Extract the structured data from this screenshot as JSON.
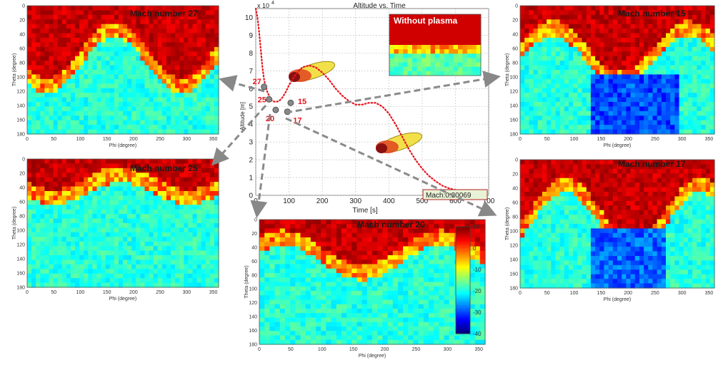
{
  "maps": [
    {
      "id": "m27",
      "title": "Mach number 27",
      "xlabel": "Phi (degree)",
      "ylabel": "Theta (degree)",
      "hot": 0.55
    },
    {
      "id": "m25",
      "title": "Mach number 25",
      "xlabel": "Phi (degree)",
      "ylabel": "Theta (degree)",
      "hot": 0.22
    },
    {
      "id": "m20",
      "title": "Mach number 20",
      "xlabel": "Phi (degree)",
      "ylabel": "Theta (degree)",
      "hot": 0.35
    },
    {
      "id": "m15",
      "title": "Mach number 15",
      "xlabel": "Phi (degree)",
      "ylabel": "Theta (degree)",
      "hot": 0.5
    },
    {
      "id": "m17",
      "title": "Mach number 17",
      "xlabel": "Phi (degree)",
      "ylabel": "Theta (degree)",
      "hot": 0.6
    }
  ],
  "map_axes": {
    "x_ticks": [
      "0",
      "50",
      "100",
      "150",
      "200",
      "250",
      "300",
      "350"
    ],
    "y_ticks": [
      "0",
      "20",
      "40",
      "60",
      "80",
      "100",
      "120",
      "140",
      "160",
      "180"
    ]
  },
  "colorbar": {
    "ticks": [
      "10",
      "0",
      "-10",
      "-20",
      "-30",
      "-40"
    ]
  },
  "inset": {
    "title": "Without plasma"
  },
  "chart_data": {
    "type": "line",
    "title": "Altitude vs. Time",
    "xlabel": "Time [s]",
    "ylabel": "Altitude [m]",
    "y_multiplier": "x 10",
    "y_exponent": "4",
    "xlim": [
      0,
      700
    ],
    "ylim": [
      0,
      10.5
    ],
    "grid": true,
    "x_ticks": [
      "0",
      "100",
      "200",
      "300",
      "400",
      "500",
      "600",
      "700"
    ],
    "y_ticks": [
      "0",
      "1",
      "2",
      "3",
      "4",
      "5",
      "6",
      "7",
      "8",
      "9",
      "10"
    ],
    "series": [
      {
        "x": [
          0,
          5,
          10,
          15,
          20,
          25,
          30,
          35,
          40,
          45,
          50,
          60,
          70,
          80,
          90,
          100,
          120,
          140,
          160,
          180,
          200,
          220,
          240,
          260,
          280,
          300,
          320,
          340,
          360,
          380,
          400,
          420,
          440,
          460,
          480,
          500,
          520,
          540,
          560,
          580,
          600,
          620,
          640,
          660,
          680,
          700
        ],
        "y": [
          10.5,
          10.0,
          9.2,
          8.2,
          7.2,
          6.5,
          6.1,
          5.8,
          5.6,
          5.4,
          5.3,
          5.25,
          5.3,
          5.5,
          5.8,
          6.2,
          6.8,
          7.2,
          7.3,
          7.2,
          6.9,
          6.5,
          6.0,
          5.6,
          5.3,
          5.1,
          5.1,
          5.2,
          5.2,
          5.0,
          4.6,
          4.0,
          3.3,
          2.6,
          2.0,
          1.5,
          1.1,
          0.8,
          0.55,
          0.4,
          0.3,
          0.2,
          0.12,
          0.06,
          0.02,
          0.0
        ]
      }
    ],
    "annotations": [
      {
        "text": "27",
        "x": 25,
        "y": 6.1
      },
      {
        "text": "25",
        "x": 40,
        "y": 5.4
      },
      {
        "text": "20",
        "x": 60,
        "y": 4.8
      },
      {
        "text": "17",
        "x": 95,
        "y": 4.7
      },
      {
        "text": "15",
        "x": 105,
        "y": 5.2
      }
    ],
    "datatip": "Mach:0.20069"
  }
}
